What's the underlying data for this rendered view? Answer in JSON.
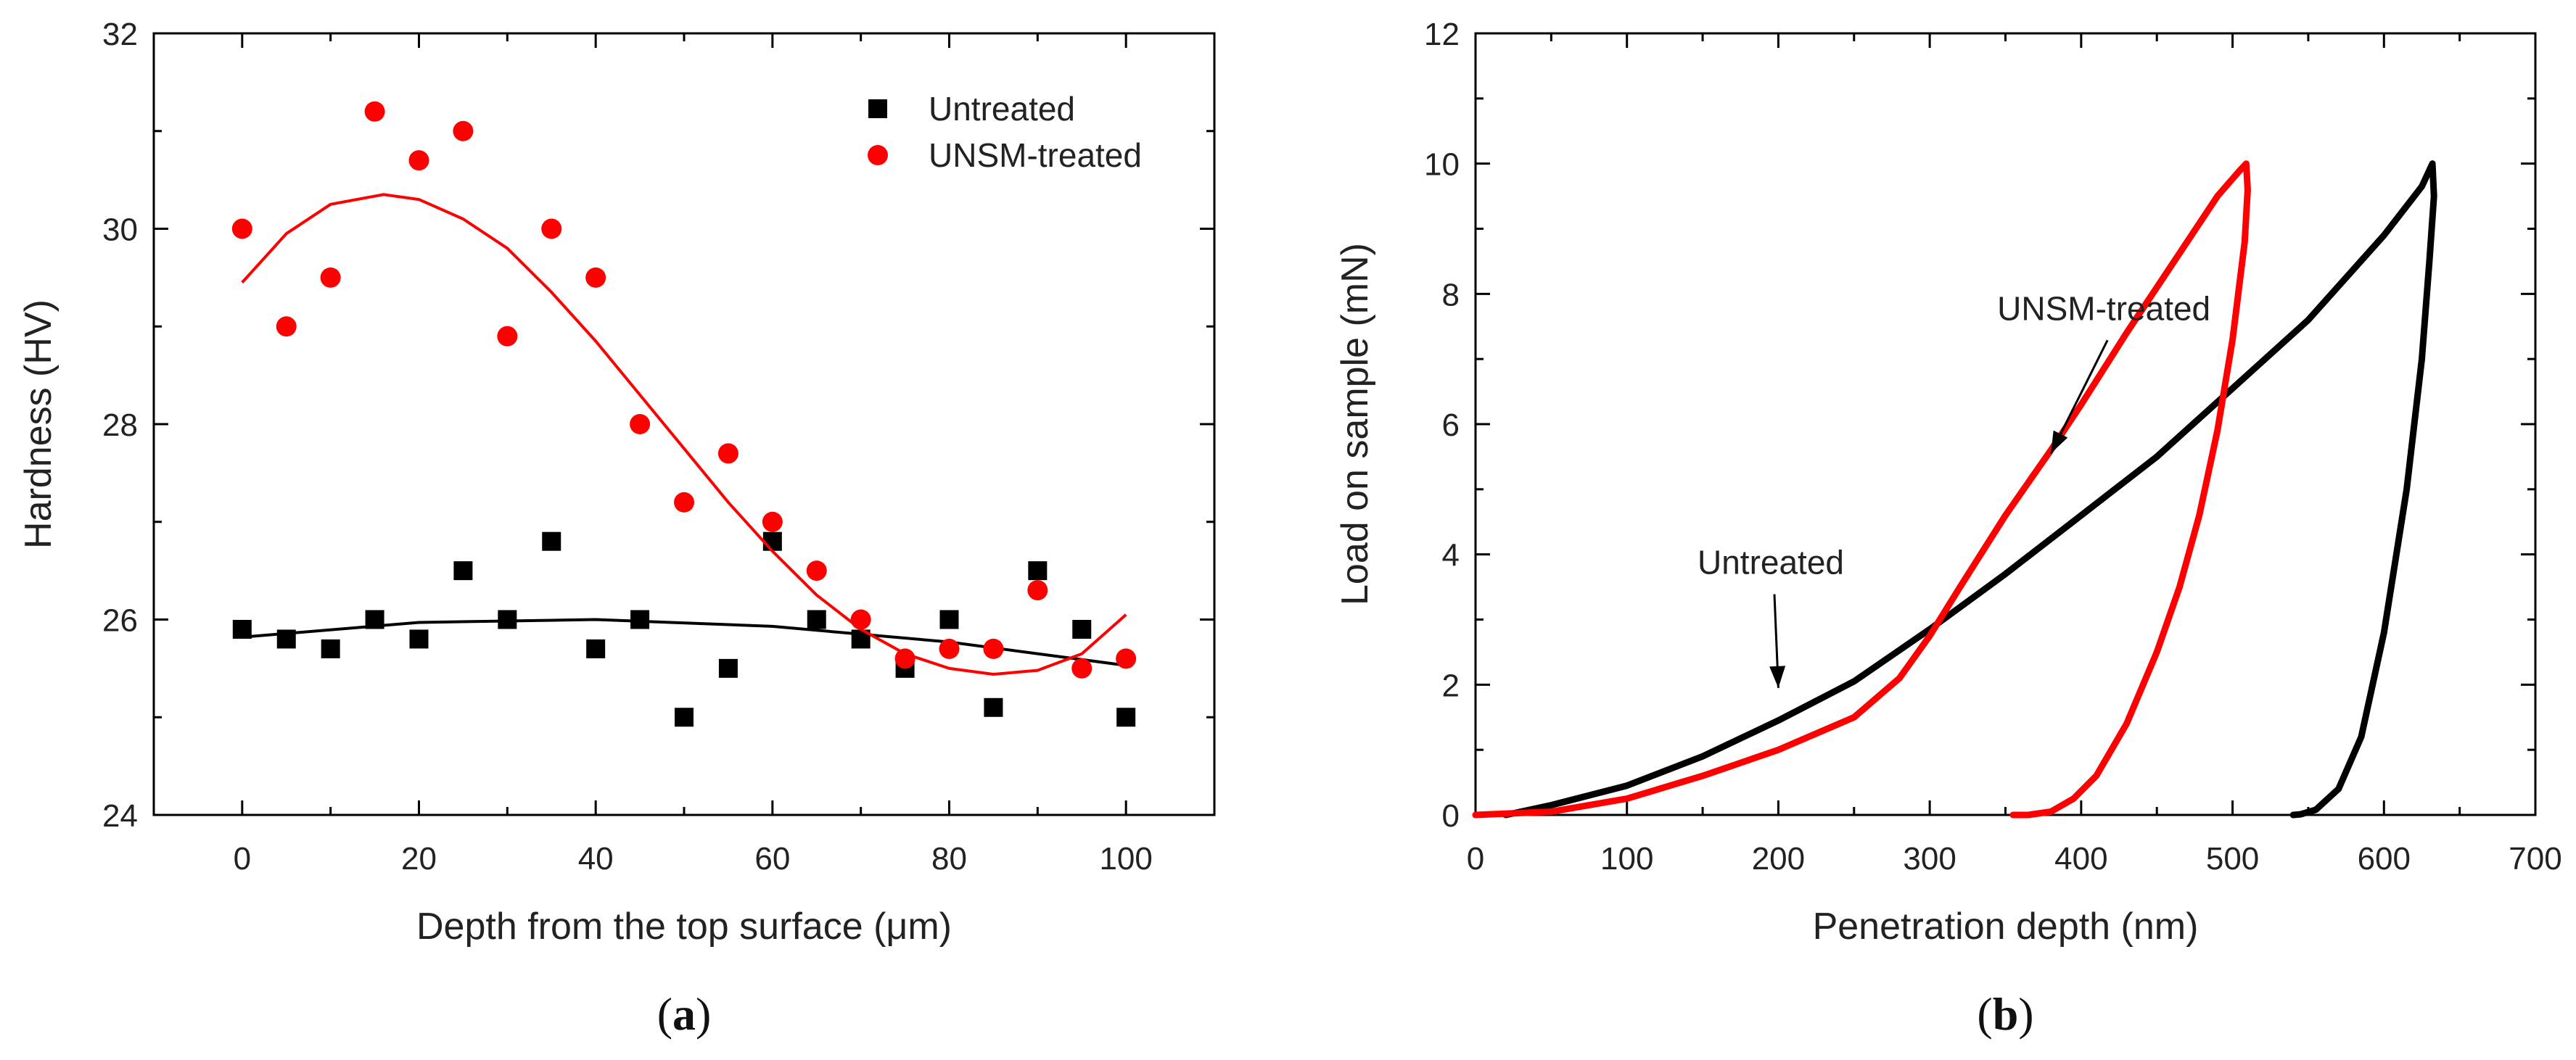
{
  "chart_data": [
    {
      "type": "scatter",
      "panel_label": "a",
      "xlabel": "Depth from the top surface (μm)",
      "ylabel": "Hardness (HV)",
      "xlim": [
        -10,
        110
      ],
      "ylim": [
        24,
        32
      ],
      "xticks": [
        0,
        20,
        40,
        60,
        80,
        100
      ],
      "yticks": [
        24,
        26,
        28,
        30,
        32
      ],
      "legend_position": "top-right",
      "series": [
        {
          "name": "Untreated",
          "marker": "square",
          "color": "#000000",
          "x": [
            0,
            5,
            10,
            15,
            20,
            25,
            30,
            35,
            40,
            45,
            50,
            55,
            60,
            65,
            70,
            75,
            80,
            85,
            90,
            95,
            100
          ],
          "y": [
            25.9,
            25.8,
            25.7,
            26.0,
            25.8,
            26.5,
            26.0,
            26.8,
            25.7,
            26.0,
            25.0,
            25.5,
            26.8,
            26.0,
            25.8,
            25.5,
            26.0,
            25.1,
            26.5,
            25.9,
            25.0
          ],
          "fit": {
            "x": [
              0,
              20,
              40,
              60,
              80,
              100
            ],
            "y": [
              25.82,
              25.97,
              26.0,
              25.93,
              25.77,
              25.53
            ]
          }
        },
        {
          "name": "UNSM-treated",
          "marker": "circle",
          "color": "#ff0000",
          "x": [
            0,
            5,
            10,
            15,
            20,
            25,
            30,
            35,
            40,
            45,
            50,
            55,
            60,
            65,
            70,
            75,
            80,
            85,
            90,
            95,
            100
          ],
          "y": [
            30.0,
            29.0,
            29.5,
            31.2,
            30.7,
            31.0,
            28.9,
            30.0,
            29.5,
            28.0,
            27.2,
            27.7,
            27.0,
            26.5,
            26.0,
            25.6,
            25.7,
            25.7,
            26.3,
            25.5,
            25.6
          ],
          "fit": {
            "x": [
              0,
              5,
              10,
              16,
              20,
              25,
              30,
              35,
              40,
              45,
              50,
              55,
              60,
              65,
              70,
              75,
              80,
              85,
              90,
              95,
              100
            ],
            "y": [
              29.45,
              29.95,
              30.25,
              30.35,
              30.3,
              30.1,
              29.8,
              29.35,
              28.85,
              28.3,
              27.75,
              27.2,
              26.7,
              26.25,
              25.9,
              25.65,
              25.5,
              25.44,
              25.48,
              25.65,
              26.05
            ]
          }
        }
      ]
    },
    {
      "type": "line",
      "panel_label": "b",
      "xlabel": "Penetration depth (nm)",
      "ylabel": "Load on sample (mN)",
      "xlim": [
        0,
        700
      ],
      "ylim": [
        0,
        12
      ],
      "xticks": [
        0,
        100,
        200,
        300,
        400,
        500,
        600,
        700
      ],
      "yticks": [
        0,
        2,
        4,
        6,
        8,
        10,
        12
      ],
      "annotations": [
        {
          "text": "UNSM-treated",
          "x": 415,
          "y": 7.6,
          "arrow_to": [
            380,
            5.55
          ]
        },
        {
          "text": "Untreated",
          "x": 195,
          "y": 3.7,
          "arrow_to": [
            200,
            1.95
          ]
        }
      ],
      "series": [
        {
          "name": "Untreated",
          "color": "#000000",
          "x": [
            20,
            50,
            100,
            150,
            200,
            250,
            300,
            350,
            400,
            450,
            500,
            550,
            600,
            625,
            632,
            633,
            630,
            625,
            615,
            600,
            585,
            570,
            555,
            545,
            540
          ],
          "y": [
            0,
            0.15,
            0.45,
            0.9,
            1.45,
            2.05,
            2.85,
            3.7,
            4.6,
            5.5,
            6.55,
            7.6,
            8.9,
            9.65,
            10.0,
            9.5,
            8.5,
            7.0,
            5.0,
            2.8,
            1.2,
            0.4,
            0.08,
            0.01,
            0
          ]
        },
        {
          "name": "UNSM-treated",
          "color": "#ff0000",
          "x": [
            0,
            50,
            100,
            150,
            200,
            250,
            280,
            300,
            320,
            350,
            380,
            400,
            430,
            450,
            470,
            490,
            505,
            509,
            510,
            508,
            500,
            490,
            478,
            465,
            450,
            430,
            410,
            395,
            380,
            365,
            355
          ],
          "y": [
            0,
            0.05,
            0.25,
            0.6,
            1.0,
            1.5,
            2.1,
            2.75,
            3.5,
            4.6,
            5.6,
            6.3,
            7.4,
            8.1,
            8.8,
            9.5,
            9.9,
            10.0,
            9.6,
            8.8,
            7.3,
            5.9,
            4.6,
            3.5,
            2.5,
            1.4,
            0.6,
            0.25,
            0.05,
            0,
            0
          ]
        }
      ]
    }
  ]
}
